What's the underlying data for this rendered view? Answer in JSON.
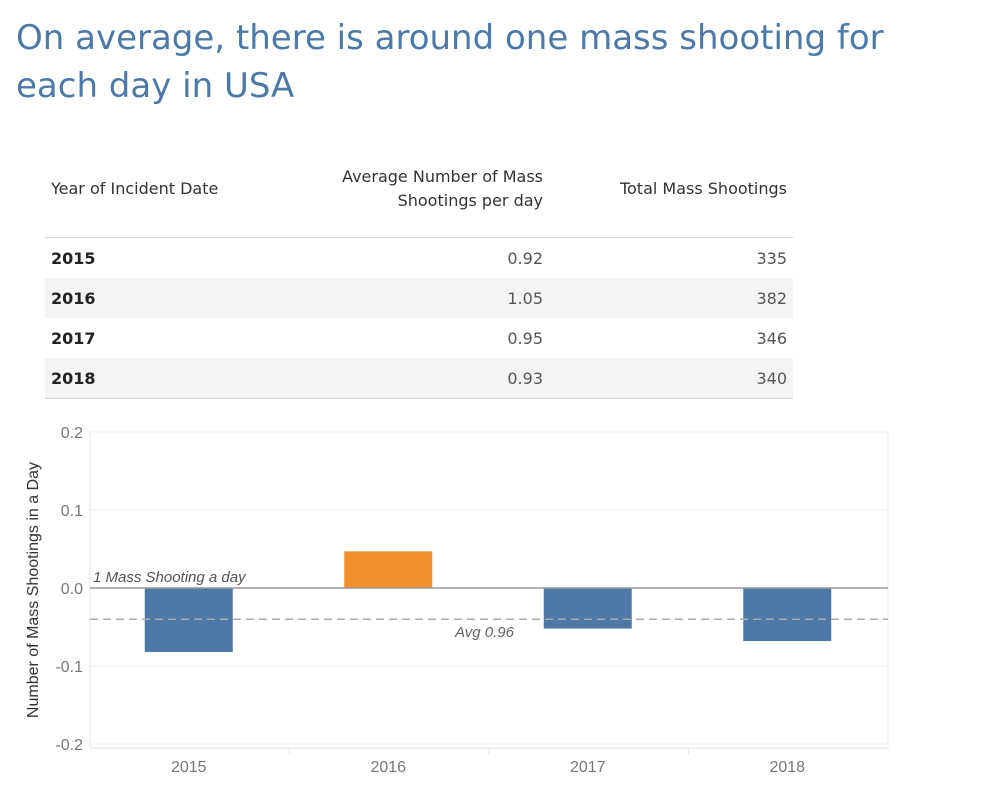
{
  "page": {
    "title": "On average, there is around one mass shooting for each day in USA"
  },
  "table": {
    "headers": [
      "Year of Incident Date",
      "Average Number of Mass Shootings per day",
      "Total Mass Shootings"
    ],
    "rows": [
      {
        "year": "2015",
        "avg": "0.92",
        "total": "335"
      },
      {
        "year": "2016",
        "avg": "1.05",
        "total": "382"
      },
      {
        "year": "2017",
        "avg": "0.95",
        "total": "346"
      },
      {
        "year": "2018",
        "avg": "0.93",
        "total": "340"
      }
    ]
  },
  "chart_data": {
    "type": "bar",
    "ylabel": "Number of Mass Shootings in a Day",
    "categories": [
      "2015",
      "2016",
      "2017",
      "2018"
    ],
    "values": [
      -0.082,
      0.047,
      -0.052,
      -0.068
    ],
    "ylim": [
      -0.2,
      0.2
    ],
    "yticks": [
      "0.2",
      "0.1",
      "0.0",
      "-0.1",
      "-0.2"
    ],
    "ytick_values": [
      0.2,
      0.1,
      0.0,
      -0.1,
      -0.2
    ],
    "colors": {
      "above": "#f28e2b",
      "below": "#4e79a7"
    },
    "reference_lines": [
      {
        "value": 0.0,
        "label": "1 Mass Shooting a day",
        "style": "solid",
        "color": "#999999"
      },
      {
        "value": -0.04,
        "label": "Avg 0.96",
        "style": "dashed",
        "color": "#aaaaaa"
      }
    ],
    "grid": true
  }
}
